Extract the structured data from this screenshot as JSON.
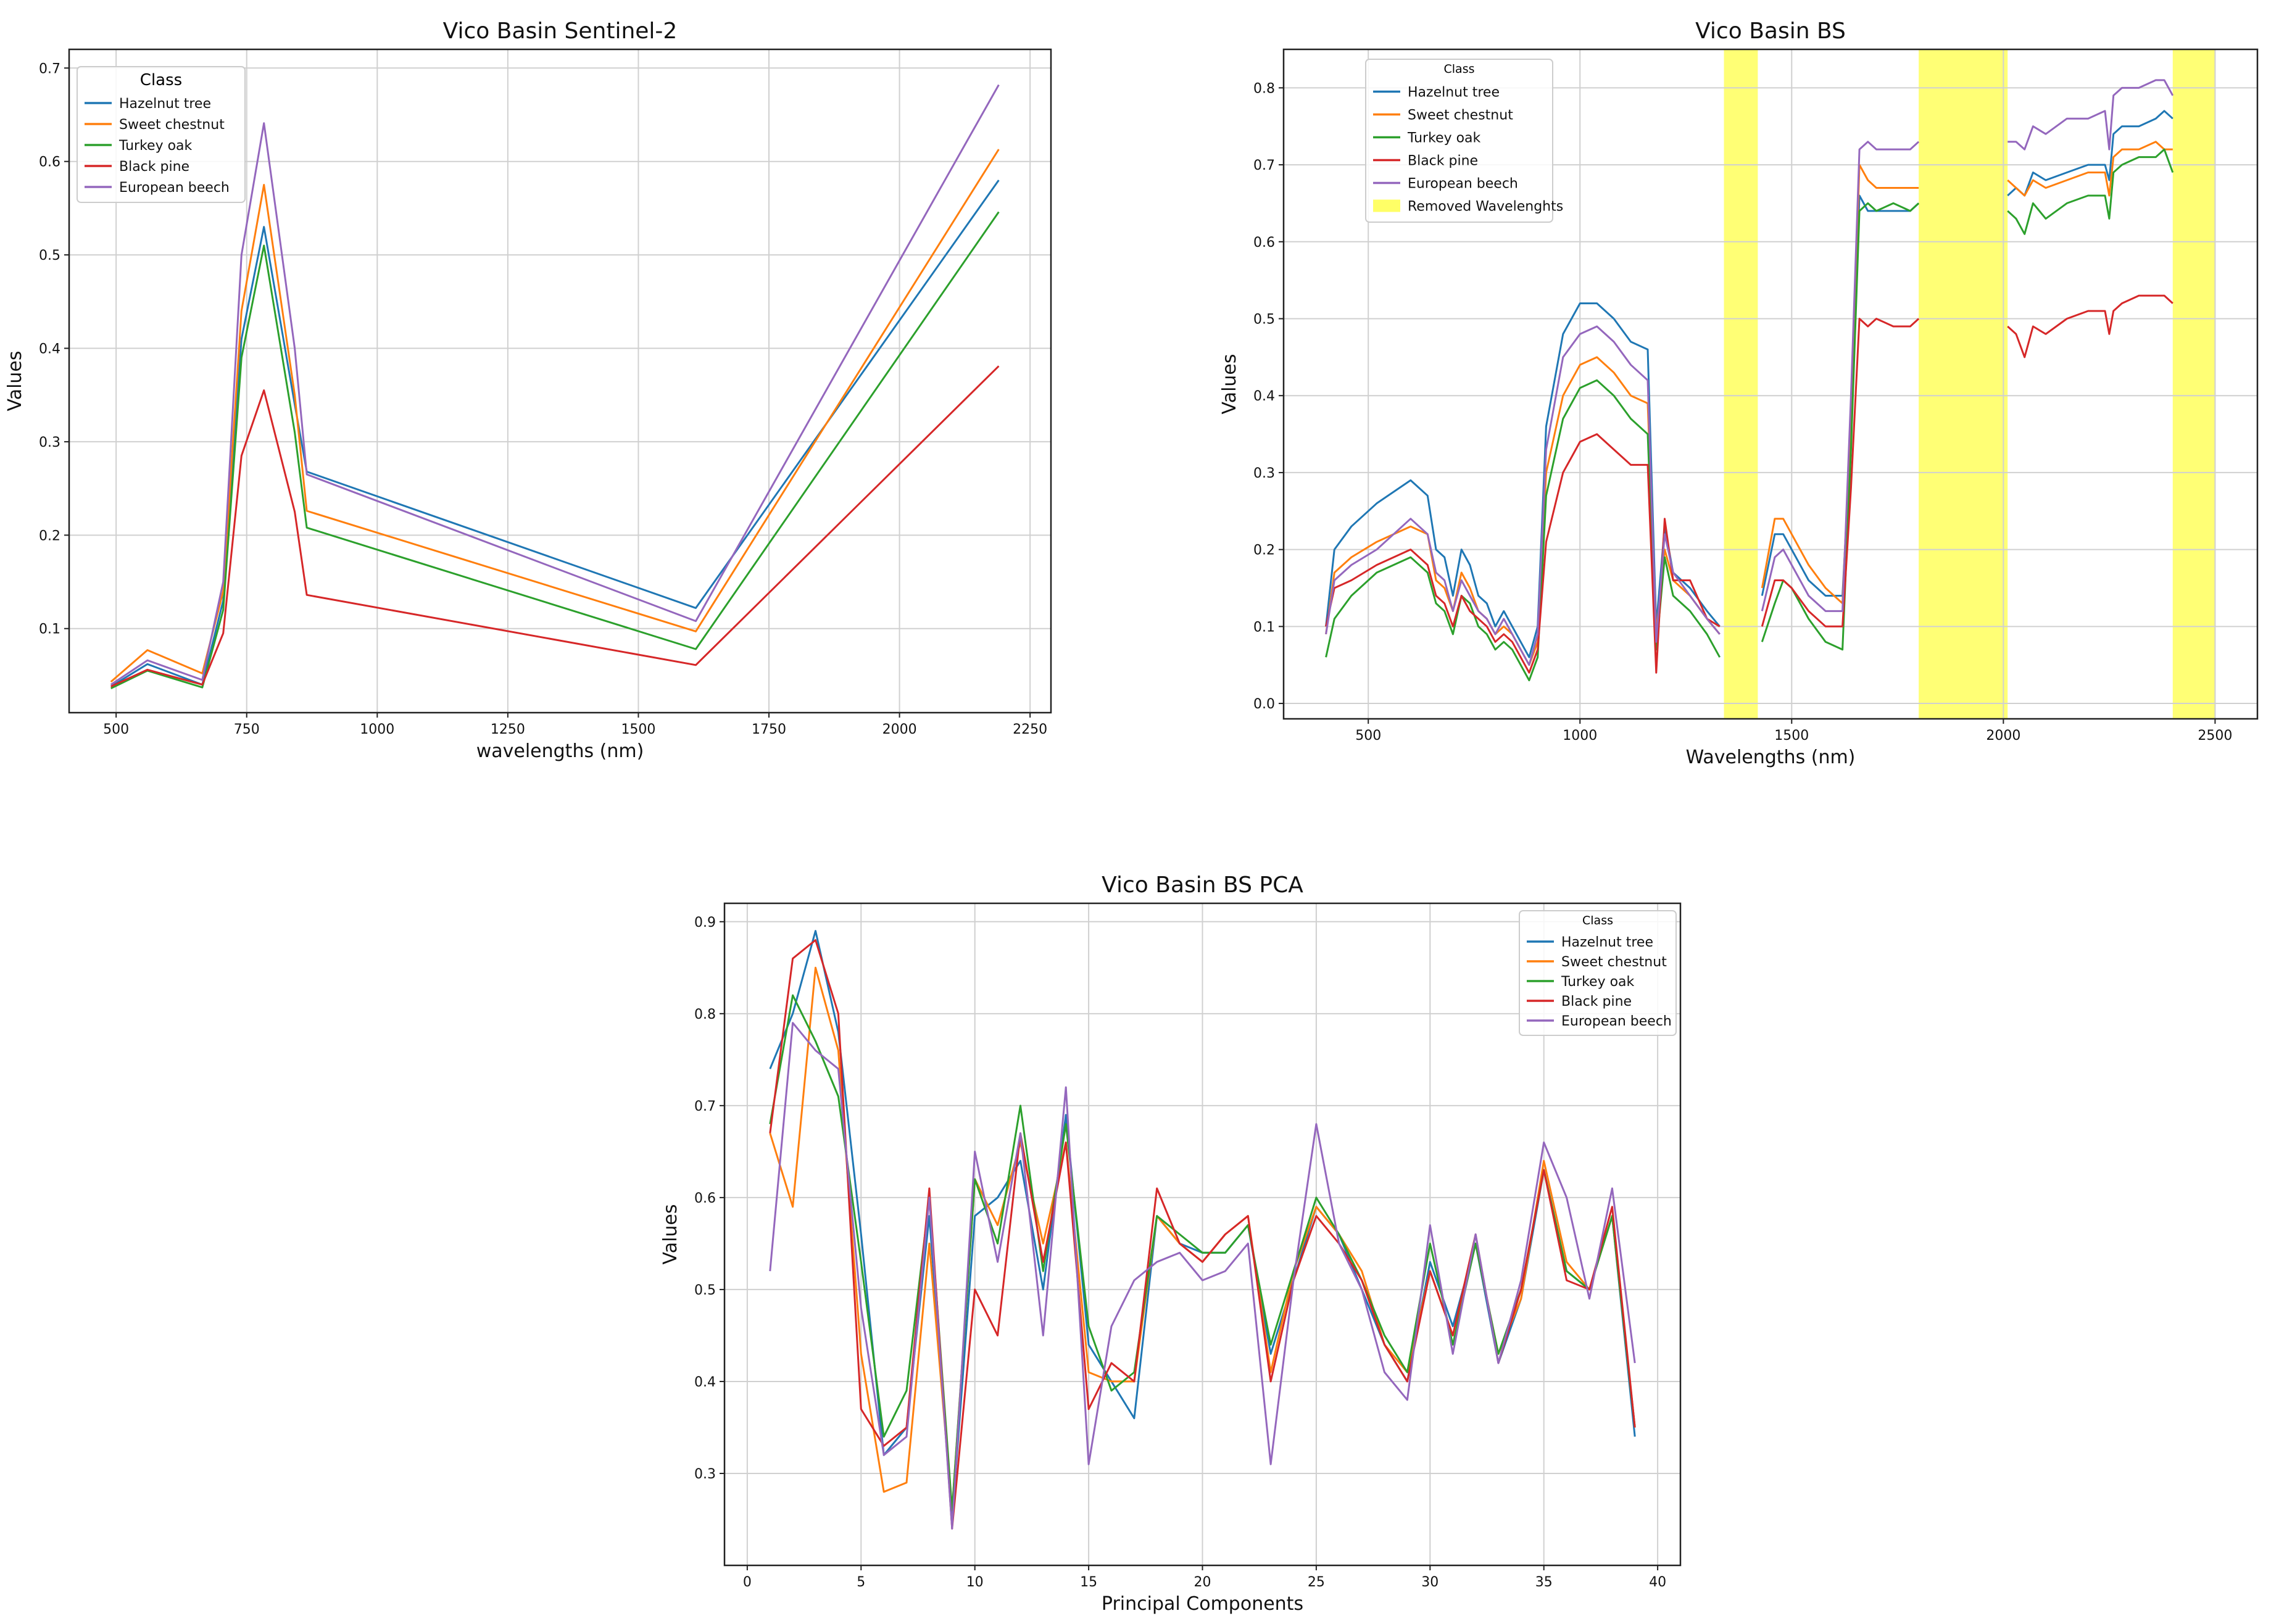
{
  "colors": {
    "Hazelnut tree": "#1f77b4",
    "Sweet chestnut": "#ff7f0e",
    "Turkey oak": "#2ca02c",
    "Black pine": "#d62728",
    "European beech": "#9467bd",
    "Removed Wavelenghts": "#ffff66"
  },
  "chart_data": [
    {
      "id": "s2",
      "type": "line",
      "title": "Vico Basin Sentinel-2",
      "xlabel": "wavelengths (nm)",
      "ylabel": "Values",
      "xlim": [
        410,
        2290
      ],
      "ylim": [
        0.01,
        0.72
      ],
      "xticks": [
        500,
        750,
        1000,
        1250,
        1500,
        1750,
        2000,
        2250
      ],
      "yticks": [
        0.1,
        0.2,
        0.3,
        0.4,
        0.5,
        0.6,
        0.7
      ],
      "grid": true,
      "legend": {
        "title": "Class",
        "position": "top-left"
      },
      "x": [
        490,
        560,
        665,
        705,
        740,
        783,
        842,
        865,
        1610,
        2190
      ],
      "series": [
        {
          "name": "Hazelnut tree",
          "values": [
            0.038,
            0.062,
            0.04,
            0.13,
            0.41,
            0.53,
            0.34,
            0.268,
            0.122,
            0.58
          ]
        },
        {
          "name": "Sweet chestnut",
          "values": [
            0.043,
            0.077,
            0.052,
            0.14,
            0.44,
            0.575,
            0.35,
            0.226,
            0.097,
            0.613
          ]
        },
        {
          "name": "Turkey oak",
          "values": [
            0.036,
            0.055,
            0.037,
            0.12,
            0.39,
            0.51,
            0.31,
            0.208,
            0.078,
            0.546
          ]
        },
        {
          "name": "Black pine",
          "values": [
            0.038,
            0.056,
            0.04,
            0.095,
            0.285,
            0.355,
            0.225,
            0.136,
            0.061,
            0.381
          ]
        },
        {
          "name": "European beech",
          "values": [
            0.04,
            0.066,
            0.045,
            0.15,
            0.5,
            0.641,
            0.4,
            0.265,
            0.108,
            0.682
          ]
        }
      ]
    },
    {
      "id": "bs",
      "type": "line",
      "title": "Vico Basin BS",
      "xlabel": "Wavelengths (nm)",
      "ylabel": "Values",
      "xlim": [
        300,
        2600
      ],
      "ylim": [
        -0.02,
        0.85
      ],
      "xticks": [
        500,
        1000,
        1500,
        2000,
        2500
      ],
      "yticks": [
        0.0,
        0.1,
        0.2,
        0.3,
        0.4,
        0.5,
        0.6,
        0.7,
        0.8
      ],
      "grid": true,
      "legend": {
        "title": "Class",
        "position": "top-left"
      },
      "removed_bands": [
        [
          1340,
          1420
        ],
        [
          1800,
          2010
        ],
        [
          2400,
          2500
        ]
      ],
      "removed_label": "Removed Wavelenghts",
      "segments": [
        {
          "x": [
            400,
            420,
            460,
            520,
            600,
            640,
            660,
            680,
            700,
            720,
            740,
            760,
            780,
            800,
            820,
            840,
            860,
            880,
            900,
            920,
            960,
            1000,
            1040,
            1080,
            1120,
            1160,
            1180,
            1200,
            1220,
            1260,
            1300,
            1330
          ]
        },
        {
          "x": [
            1430,
            1460,
            1480,
            1500,
            1540,
            1580,
            1620,
            1640,
            1660,
            1680,
            1700,
            1740,
            1780,
            1800
          ]
        },
        {
          "x": [
            2010,
            2030,
            2050,
            2070,
            2100,
            2150,
            2200,
            2240,
            2250,
            2260,
            2280,
            2320,
            2360,
            2380,
            2400
          ]
        }
      ],
      "series": [
        {
          "name": "Hazelnut tree",
          "values": [
            [
              0.1,
              0.2,
              0.23,
              0.26,
              0.29,
              0.27,
              0.2,
              0.19,
              0.14,
              0.2,
              0.18,
              0.14,
              0.13,
              0.1,
              0.12,
              0.1,
              0.08,
              0.06,
              0.1,
              0.36,
              0.48,
              0.52,
              0.52,
              0.5,
              0.47,
              0.46,
              0.1,
              0.23,
              0.17,
              0.15,
              0.12,
              0.1
            ],
            [
              0.14,
              0.22,
              0.22,
              0.2,
              0.16,
              0.14,
              0.14,
              0.35,
              0.66,
              0.64,
              0.64,
              0.64,
              0.64,
              0.65
            ],
            [
              0.66,
              0.67,
              0.66,
              0.69,
              0.68,
              0.69,
              0.7,
              0.7,
              0.68,
              0.74,
              0.75,
              0.75,
              0.76,
              0.77,
              0.76
            ]
          ]
        },
        {
          "name": "Sweet chestnut",
          "values": [
            [
              0.09,
              0.17,
              0.19,
              0.21,
              0.23,
              0.22,
              0.16,
              0.15,
              0.12,
              0.17,
              0.15,
              0.12,
              0.11,
              0.09,
              0.1,
              0.09,
              0.07,
              0.05,
              0.08,
              0.3,
              0.4,
              0.44,
              0.45,
              0.43,
              0.4,
              0.39,
              0.09,
              0.2,
              0.16,
              0.14,
              0.11,
              0.09
            ],
            [
              0.15,
              0.24,
              0.24,
              0.22,
              0.18,
              0.15,
              0.13,
              0.37,
              0.7,
              0.68,
              0.67,
              0.67,
              0.67,
              0.67
            ],
            [
              0.68,
              0.67,
              0.66,
              0.68,
              0.67,
              0.68,
              0.69,
              0.69,
              0.66,
              0.71,
              0.72,
              0.72,
              0.73,
              0.72,
              0.72
            ]
          ]
        },
        {
          "name": "Turkey oak",
          "values": [
            [
              0.06,
              0.11,
              0.14,
              0.17,
              0.19,
              0.17,
              0.13,
              0.12,
              0.09,
              0.14,
              0.13,
              0.1,
              0.09,
              0.07,
              0.08,
              0.07,
              0.05,
              0.03,
              0.06,
              0.27,
              0.37,
              0.41,
              0.42,
              0.4,
              0.37,
              0.35,
              0.07,
              0.19,
              0.14,
              0.12,
              0.09,
              0.06
            ],
            [
              0.08,
              0.13,
              0.16,
              0.15,
              0.11,
              0.08,
              0.07,
              0.33,
              0.64,
              0.65,
              0.64,
              0.65,
              0.64,
              0.65
            ],
            [
              0.64,
              0.63,
              0.61,
              0.65,
              0.63,
              0.65,
              0.66,
              0.66,
              0.63,
              0.69,
              0.7,
              0.71,
              0.71,
              0.72,
              0.69
            ]
          ]
        },
        {
          "name": "Black pine",
          "values": [
            [
              0.1,
              0.15,
              0.16,
              0.18,
              0.2,
              0.18,
              0.14,
              0.13,
              0.1,
              0.14,
              0.12,
              0.11,
              0.1,
              0.08,
              0.09,
              0.08,
              0.06,
              0.04,
              0.07,
              0.21,
              0.3,
              0.34,
              0.35,
              0.33,
              0.31,
              0.31,
              0.04,
              0.24,
              0.16,
              0.16,
              0.11,
              0.1
            ],
            [
              0.1,
              0.16,
              0.16,
              0.15,
              0.12,
              0.1,
              0.1,
              0.28,
              0.5,
              0.49,
              0.5,
              0.49,
              0.49,
              0.5
            ],
            [
              0.49,
              0.48,
              0.45,
              0.49,
              0.48,
              0.5,
              0.51,
              0.51,
              0.48,
              0.51,
              0.52,
              0.53,
              0.53,
              0.53,
              0.52
            ]
          ]
        },
        {
          "name": "European beech",
          "values": [
            [
              0.09,
              0.16,
              0.18,
              0.2,
              0.24,
              0.22,
              0.17,
              0.16,
              0.12,
              0.16,
              0.14,
              0.12,
              0.11,
              0.09,
              0.11,
              0.09,
              0.07,
              0.05,
              0.09,
              0.33,
              0.45,
              0.48,
              0.49,
              0.47,
              0.44,
              0.42,
              0.08,
              0.22,
              0.17,
              0.14,
              0.11,
              0.09
            ],
            [
              0.12,
              0.19,
              0.2,
              0.18,
              0.14,
              0.12,
              0.12,
              0.4,
              0.72,
              0.73,
              0.72,
              0.72,
              0.72,
              0.73
            ],
            [
              0.73,
              0.73,
              0.72,
              0.75,
              0.74,
              0.76,
              0.76,
              0.77,
              0.72,
              0.79,
              0.8,
              0.8,
              0.81,
              0.81,
              0.79
            ]
          ]
        }
      ]
    },
    {
      "id": "pca",
      "type": "line",
      "title": "Vico Basin BS PCA",
      "xlabel": "Principal Components",
      "ylabel": "Values",
      "xlim": [
        -1,
        41
      ],
      "ylim": [
        0.2,
        0.92
      ],
      "xticks": [
        0,
        5,
        10,
        15,
        20,
        25,
        30,
        35,
        40
      ],
      "yticks": [
        0.3,
        0.4,
        0.5,
        0.6,
        0.7,
        0.8,
        0.9
      ],
      "grid": true,
      "legend": {
        "title": "Class",
        "position": "top-right"
      },
      "x": [
        1,
        2,
        3,
        4,
        5,
        6,
        7,
        8,
        9,
        10,
        11,
        12,
        13,
        14,
        15,
        16,
        17,
        18,
        19,
        20,
        21,
        22,
        23,
        24,
        25,
        26,
        27,
        28,
        29,
        30,
        31,
        32,
        33,
        34,
        35,
        36,
        37,
        38,
        39
      ],
      "series": [
        {
          "name": "Hazelnut tree",
          "values": [
            0.74,
            0.8,
            0.89,
            0.78,
            0.56,
            0.32,
            0.35,
            0.58,
            0.25,
            0.58,
            0.6,
            0.64,
            0.5,
            0.69,
            0.44,
            0.4,
            0.36,
            0.58,
            0.55,
            0.54,
            0.54,
            0.57,
            0.43,
            0.51,
            0.59,
            0.56,
            0.5,
            0.44,
            0.4,
            0.53,
            0.46,
            0.55,
            0.42,
            0.49,
            0.63,
            0.52,
            0.5,
            0.58,
            0.34
          ]
        },
        {
          "name": "Sweet chestnut",
          "values": [
            0.67,
            0.59,
            0.85,
            0.76,
            0.43,
            0.28,
            0.29,
            0.55,
            0.26,
            0.62,
            0.57,
            0.66,
            0.55,
            0.66,
            0.41,
            0.4,
            0.4,
            0.58,
            0.55,
            0.53,
            0.56,
            0.58,
            0.41,
            0.52,
            0.59,
            0.56,
            0.52,
            0.44,
            0.41,
            0.52,
            0.45,
            0.55,
            0.43,
            0.49,
            0.64,
            0.53,
            0.5,
            0.58,
            0.35
          ]
        },
        {
          "name": "Turkey oak",
          "values": [
            0.68,
            0.82,
            0.77,
            0.71,
            0.53,
            0.34,
            0.39,
            0.6,
            0.26,
            0.62,
            0.55,
            0.7,
            0.52,
            0.68,
            0.46,
            0.39,
            0.41,
            0.58,
            0.56,
            0.54,
            0.54,
            0.57,
            0.44,
            0.52,
            0.6,
            0.56,
            0.51,
            0.45,
            0.41,
            0.55,
            0.44,
            0.55,
            0.43,
            0.5,
            0.63,
            0.52,
            0.5,
            0.58,
            0.35
          ]
        },
        {
          "name": "Black pine",
          "values": [
            0.67,
            0.86,
            0.88,
            0.8,
            0.37,
            0.33,
            0.35,
            0.61,
            0.24,
            0.5,
            0.45,
            0.67,
            0.53,
            0.66,
            0.37,
            0.42,
            0.4,
            0.61,
            0.55,
            0.53,
            0.56,
            0.58,
            0.4,
            0.51,
            0.58,
            0.55,
            0.51,
            0.44,
            0.4,
            0.52,
            0.45,
            0.56,
            0.42,
            0.5,
            0.63,
            0.51,
            0.5,
            0.59,
            0.35
          ]
        },
        {
          "name": "European beech",
          "values": [
            0.52,
            0.79,
            0.76,
            0.74,
            0.48,
            0.32,
            0.34,
            0.6,
            0.24,
            0.65,
            0.53,
            0.67,
            0.45,
            0.72,
            0.31,
            0.46,
            0.51,
            0.53,
            0.54,
            0.51,
            0.52,
            0.55,
            0.31,
            0.51,
            0.68,
            0.55,
            0.5,
            0.41,
            0.38,
            0.57,
            0.43,
            0.56,
            0.42,
            0.51,
            0.66,
            0.6,
            0.49,
            0.61,
            0.42
          ]
        }
      ]
    }
  ]
}
